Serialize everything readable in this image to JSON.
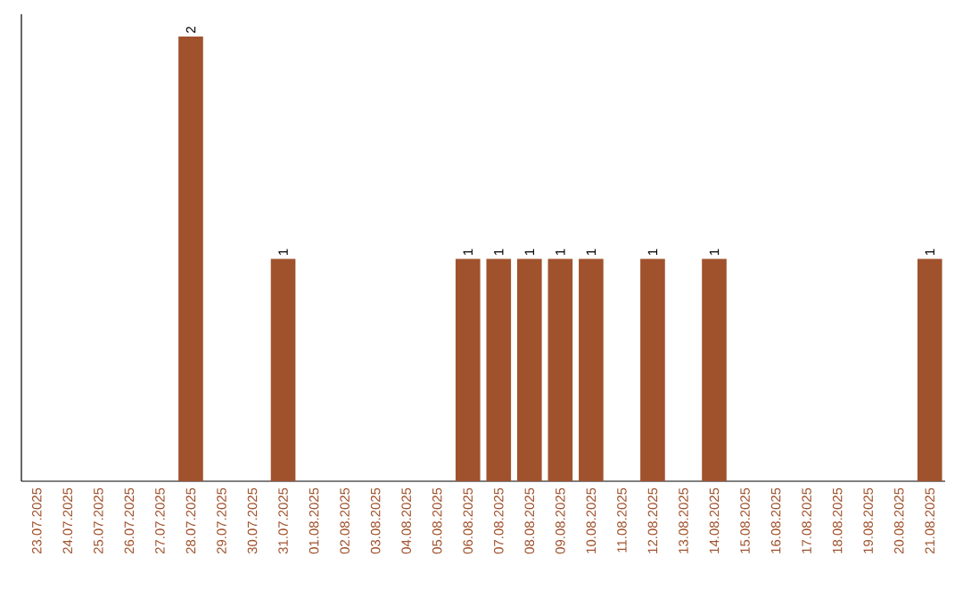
{
  "chart_data": {
    "type": "bar",
    "categories": [
      "23.07.2025",
      "24.07.2025",
      "25.07.2025",
      "26.07.2025",
      "27.07.2025",
      "28.07.2025",
      "29.07.2025",
      "30.07.2025",
      "31.07.2025",
      "01.08.2025",
      "02.08.2025",
      "03.08.2025",
      "04.08.2025",
      "05.08.2025",
      "06.08.2025",
      "07.08.2025",
      "08.08.2025",
      "09.08.2025",
      "10.08.2025",
      "11.08.2025",
      "12.08.2025",
      "13.08.2025",
      "14.08.2025",
      "15.08.2025",
      "16.08.2025",
      "17.08.2025",
      "18.08.2025",
      "19.08.2025",
      "20.08.2025",
      "21.08.2025"
    ],
    "values": [
      0,
      0,
      0,
      0,
      0,
      2,
      0,
      0,
      1,
      0,
      0,
      0,
      0,
      0,
      1,
      1,
      1,
      1,
      1,
      0,
      1,
      0,
      1,
      0,
      0,
      0,
      0,
      0,
      0,
      1
    ],
    "value_labels": [
      null,
      null,
      null,
      null,
      null,
      "2",
      null,
      null,
      "1",
      null,
      null,
      null,
      null,
      null,
      "1",
      "1",
      "1",
      "1",
      "1",
      null,
      "1",
      null,
      "1",
      null,
      null,
      null,
      null,
      null,
      null,
      "1"
    ],
    "color": "#a0522d"
  }
}
